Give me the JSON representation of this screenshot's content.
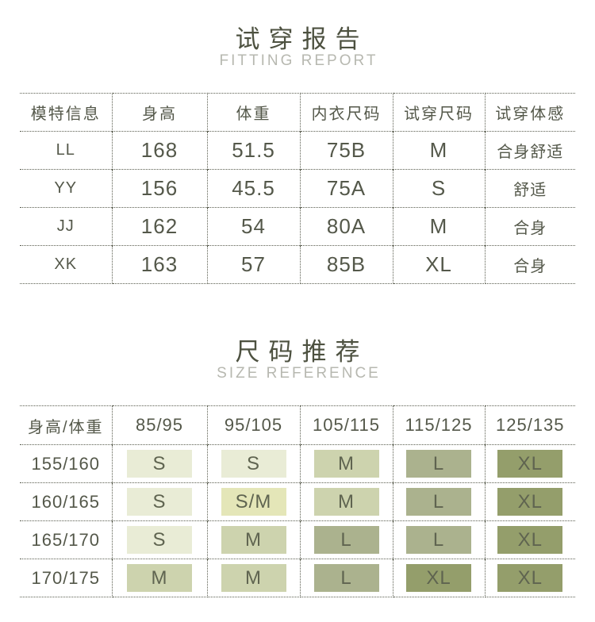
{
  "colors": {
    "page_bg": "#ffffff",
    "title_text": "#4d5140",
    "subtitle_text": "#b7b8b0",
    "table_text": "#54584a",
    "line": "#5a5d4f",
    "chip_text": "#5f6450"
  },
  "size_colors": {
    "S": "#e9ecd6",
    "S/M": "#e4e6b8",
    "M": "#cdd3ae",
    "L": "#abb28e",
    "XL": "#949e6b"
  },
  "fitting_report": {
    "title": "试穿报告",
    "subtitle": "FITTING REPORT",
    "columns": [
      "模特信息",
      "身高",
      "体重",
      "内衣尺码",
      "试穿尺码",
      "试穿体感"
    ],
    "rows": [
      [
        "LL",
        "168",
        "51.5",
        "75B",
        "M",
        "合身舒适"
      ],
      [
        "YY",
        "156",
        "45.5",
        "75A",
        "S",
        "舒适"
      ],
      [
        "JJ",
        "162",
        "54",
        "80A",
        "M",
        "合身"
      ],
      [
        "XK",
        "163",
        "57",
        "85B",
        "XL",
        "合身"
      ]
    ]
  },
  "size_reference": {
    "title": "尺码推荐",
    "subtitle": "SIZE REFERENCE",
    "columns": [
      "身高/体重",
      "85/95",
      "95/105",
      "105/115",
      "115/125",
      "125/135"
    ],
    "rows": [
      {
        "label": "155/160",
        "sizes": [
          "S",
          "S",
          "M",
          "L",
          "XL"
        ]
      },
      {
        "label": "160/165",
        "sizes": [
          "S",
          "S/M",
          "M",
          "L",
          "XL"
        ]
      },
      {
        "label": "165/170",
        "sizes": [
          "S",
          "M",
          "L",
          "L",
          "XL"
        ]
      },
      {
        "label": "170/175",
        "sizes": [
          "M",
          "M",
          "L",
          "XL",
          "XL"
        ]
      }
    ]
  }
}
